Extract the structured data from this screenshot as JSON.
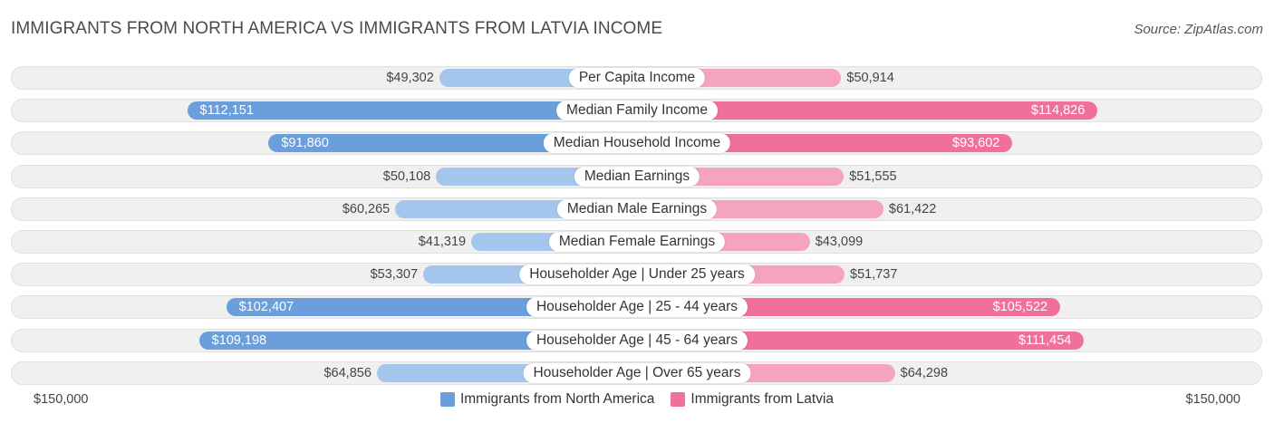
{
  "title": "IMMIGRANTS FROM NORTH AMERICA VS IMMIGRANTS FROM LATVIA INCOME",
  "source": "Source: ZipAtlas.com",
  "colors": {
    "left_strong": "#6a9fdc",
    "left_light": "#a4c6ec",
    "right_strong": "#f0709a",
    "right_light": "#f5a4c0",
    "track": "#f0f0f0"
  },
  "chart_data": {
    "type": "bar",
    "orientation": "horizontal-diverging",
    "title": "IMMIGRANTS FROM NORTH AMERICA VS IMMIGRANTS FROM LATVIA INCOME",
    "axis_max": 150000,
    "axis_left_label": "$150,000",
    "axis_right_label": "$150,000",
    "categories": [
      "Per Capita Income",
      "Median Family Income",
      "Median Household Income",
      "Median Earnings",
      "Median Male Earnings",
      "Median Female Earnings",
      "Householder Age | Under 25 years",
      "Householder Age | 25 - 44 years",
      "Householder Age | 45 - 64 years",
      "Householder Age | Over 65 years"
    ],
    "series": [
      {
        "name": "Immigrants from North America",
        "side": "left",
        "values": [
          49302,
          112151,
          91860,
          50108,
          60265,
          41319,
          53307,
          102407,
          109198,
          64856
        ],
        "labels": [
          "$49,302",
          "$112,151",
          "$91,860",
          "$50,108",
          "$60,265",
          "$41,319",
          "$53,307",
          "$102,407",
          "$109,198",
          "$64,856"
        ]
      },
      {
        "name": "Immigrants from Latvia",
        "side": "right",
        "values": [
          50914,
          114826,
          93602,
          51555,
          61422,
          43099,
          51737,
          105522,
          111454,
          64298
        ],
        "labels": [
          "$50,914",
          "$114,826",
          "$93,602",
          "$51,555",
          "$61,422",
          "$43,099",
          "$51,737",
          "$105,522",
          "$111,454",
          "$64,298"
        ]
      }
    ],
    "legend": [
      "Immigrants from North America",
      "Immigrants from Latvia"
    ]
  }
}
